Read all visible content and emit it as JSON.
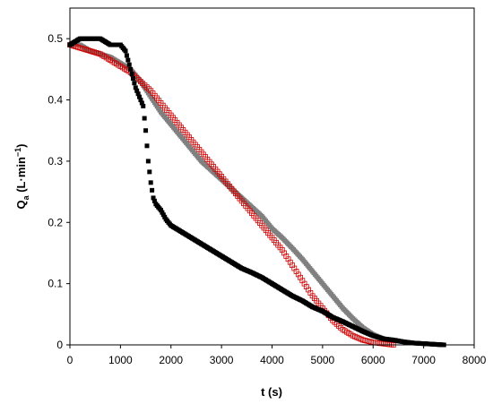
{
  "chart_data": {
    "type": "scatter",
    "title": "",
    "xlabel": "t (s)",
    "ylabel_main": "Q",
    "ylabel_sub": "a",
    "ylabel_unit": " (L·min",
    "ylabel_sup": "−1",
    "ylabel_close": ")",
    "xlim": [
      0,
      8000
    ],
    "ylim": [
      0,
      0.55
    ],
    "xticks": [
      "0",
      "1000",
      "2000",
      "3000",
      "4000",
      "5000",
      "6000",
      "7000",
      "8000"
    ],
    "yticks": [
      "0",
      "0.1",
      "0.2",
      "0.3",
      "0.4",
      "0.5"
    ],
    "grid": false,
    "legend": "none",
    "series": [
      {
        "color": "#000000",
        "marker": "filled-square",
        "x": [
          0,
          200,
          400,
          600,
          800,
          1000,
          1100,
          1200,
          1300,
          1400,
          1450,
          1500,
          1550,
          1600,
          1650,
          1700,
          1800,
          1900,
          2000,
          2200,
          2400,
          2600,
          2800,
          3000,
          3200,
          3400,
          3600,
          3800,
          4000,
          4200,
          4400,
          4600,
          4800,
          5000,
          5200,
          5400,
          5600,
          5800,
          6000,
          6200,
          6400,
          6600,
          6800,
          7000,
          7200,
          7400
        ],
        "y": [
          0.49,
          0.5,
          0.5,
          0.5,
          0.49,
          0.49,
          0.48,
          0.45,
          0.42,
          0.4,
          0.39,
          0.35,
          0.3,
          0.265,
          0.24,
          0.23,
          0.22,
          0.205,
          0.195,
          0.185,
          0.175,
          0.165,
          0.155,
          0.145,
          0.135,
          0.125,
          0.118,
          0.11,
          0.1,
          0.09,
          0.08,
          0.072,
          0.062,
          0.055,
          0.045,
          0.038,
          0.03,
          0.022,
          0.015,
          0.01,
          0.008,
          0.005,
          0.003,
          0.002,
          0.001,
          0.0
        ]
      },
      {
        "color": "#808080",
        "marker": "filled-square",
        "x": [
          0,
          200,
          400,
          600,
          800,
          1000,
          1200,
          1400,
          1600,
          1800,
          2000,
          2200,
          2400,
          2600,
          2800,
          3000,
          3200,
          3400,
          3600,
          3800,
          4000,
          4200,
          4400,
          4600,
          4800,
          5000,
          5200,
          5400,
          5600,
          5800,
          6000,
          6200,
          6400,
          6600,
          6800,
          7000,
          7200,
          7400
        ],
        "y": [
          0.49,
          0.49,
          0.48,
          0.475,
          0.47,
          0.46,
          0.45,
          0.43,
          0.405,
          0.38,
          0.36,
          0.34,
          0.32,
          0.3,
          0.285,
          0.27,
          0.255,
          0.24,
          0.225,
          0.21,
          0.19,
          0.175,
          0.158,
          0.14,
          0.12,
          0.1,
          0.08,
          0.06,
          0.043,
          0.028,
          0.017,
          0.01,
          0.007,
          0.005,
          0.003,
          0.002,
          0.001,
          0.0
        ]
      },
      {
        "color": "#cc0000",
        "marker": "open-square",
        "x": [
          0,
          200,
          400,
          600,
          800,
          1000,
          1200,
          1400,
          1600,
          1800,
          2000,
          2200,
          2400,
          2600,
          2800,
          3000,
          3200,
          3400,
          3600,
          3800,
          4000,
          4200,
          4400,
          4600,
          4800,
          5000,
          5200,
          5400,
          5600,
          5800,
          6000,
          6200,
          6400
        ],
        "y": [
          0.49,
          0.485,
          0.48,
          0.475,
          0.465,
          0.455,
          0.445,
          0.43,
          0.415,
          0.395,
          0.375,
          0.355,
          0.335,
          0.315,
          0.295,
          0.275,
          0.255,
          0.235,
          0.215,
          0.195,
          0.175,
          0.155,
          0.13,
          0.105,
          0.08,
          0.06,
          0.04,
          0.025,
          0.015,
          0.008,
          0.004,
          0.002,
          0.0
        ]
      }
    ]
  }
}
